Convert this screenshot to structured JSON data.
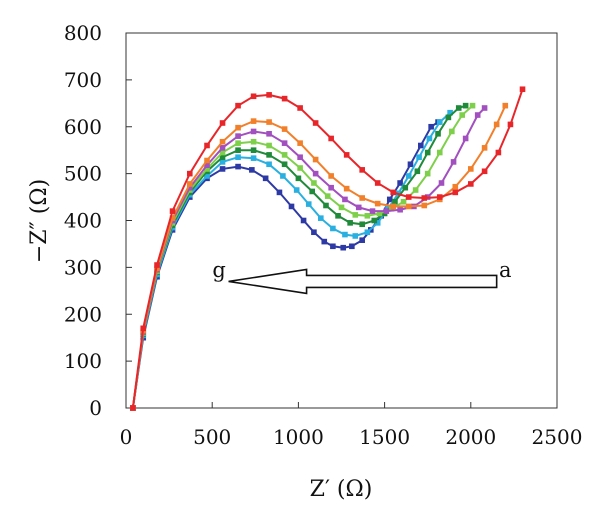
{
  "chart_data": {
    "type": "line",
    "xlabel": "Z′ (Ω)",
    "ylabel": "−Z″ (Ω)",
    "xlim": [
      0,
      2500
    ],
    "ylim": [
      0,
      800
    ],
    "x_ticks": [
      0,
      500,
      1000,
      1500,
      2000,
      2500
    ],
    "y_ticks": [
      0,
      100,
      200,
      300,
      400,
      500,
      600,
      700,
      800
    ],
    "grid": false,
    "legend": "none",
    "annotations": [
      {
        "text": "g",
        "x": 540,
        "y": 280
      },
      {
        "text": "a",
        "x": 2200,
        "y": 280
      }
    ],
    "arrow": {
      "from": [
        2150,
        270
      ],
      "to": [
        595,
        270
      ],
      "direction": "right-to-left"
    },
    "series": [
      {
        "color": "#2d3aa6",
        "marker": "square",
        "x": [
          40,
          100,
          180,
          270,
          370,
          470,
          560,
          650,
          730,
          810,
          890,
          960,
          1030,
          1090,
          1150,
          1200,
          1260,
          1310,
          1370,
          1420,
          1480,
          1530,
          1590,
          1650,
          1710,
          1770,
          1810
        ],
        "y": [
          0,
          150,
          280,
          380,
          450,
          490,
          510,
          515,
          508,
          490,
          460,
          430,
          400,
          375,
          355,
          345,
          342,
          345,
          358,
          380,
          410,
          445,
          480,
          520,
          560,
          600,
          610
        ]
      },
      {
        "color": "#29b0e0",
        "marker": "square",
        "x": [
          40,
          100,
          180,
          270,
          370,
          470,
          560,
          650,
          740,
          830,
          910,
          990,
          1060,
          1130,
          1200,
          1270,
          1330,
          1400,
          1460,
          1520,
          1580,
          1640,
          1700,
          1760,
          1820,
          1880
        ],
        "y": [
          0,
          155,
          285,
          385,
          455,
          495,
          525,
          535,
          533,
          520,
          495,
          465,
          435,
          405,
          383,
          370,
          367,
          375,
          395,
          425,
          458,
          495,
          535,
          575,
          610,
          630
        ]
      },
      {
        "color": "#1f8a3a",
        "marker": "square",
        "x": [
          40,
          100,
          180,
          270,
          370,
          470,
          560,
          650,
          740,
          830,
          920,
          1000,
          1080,
          1160,
          1230,
          1300,
          1370,
          1440,
          1500,
          1560,
          1620,
          1690,
          1750,
          1810,
          1870,
          1930,
          1970
        ],
        "y": [
          0,
          158,
          290,
          390,
          460,
          505,
          535,
          550,
          550,
          540,
          520,
          490,
          462,
          432,
          410,
          395,
          392,
          400,
          415,
          440,
          470,
          505,
          545,
          585,
          620,
          640,
          645
        ]
      },
      {
        "color": "#7ed04a",
        "marker": "square",
        "x": [
          40,
          100,
          180,
          270,
          370,
          470,
          560,
          650,
          740,
          830,
          920,
          1010,
          1090,
          1170,
          1250,
          1330,
          1400,
          1470,
          1540,
          1610,
          1680,
          1750,
          1820,
          1890,
          1950,
          2010
        ],
        "y": [
          0,
          160,
          292,
          395,
          465,
          510,
          545,
          565,
          568,
          560,
          540,
          512,
          480,
          452,
          428,
          412,
          410,
          415,
          425,
          440,
          465,
          500,
          545,
          590,
          625,
          645
        ]
      },
      {
        "color": "#a24fbf",
        "marker": "square",
        "x": [
          40,
          100,
          180,
          270,
          370,
          470,
          560,
          650,
          740,
          830,
          920,
          1010,
          1100,
          1190,
          1270,
          1350,
          1430,
          1510,
          1590,
          1670,
          1750,
          1830,
          1900,
          1970,
          2040,
          2080
        ],
        "y": [
          0,
          162,
          295,
          400,
          470,
          518,
          555,
          580,
          590,
          585,
          565,
          535,
          500,
          470,
          445,
          428,
          420,
          420,
          423,
          430,
          450,
          480,
          525,
          575,
          625,
          640
        ]
      },
      {
        "color": "#f27f2a",
        "marker": "square",
        "x": [
          40,
          100,
          180,
          270,
          370,
          470,
          560,
          650,
          740,
          830,
          920,
          1010,
          1100,
          1190,
          1280,
          1370,
          1460,
          1550,
          1640,
          1730,
          1820,
          1910,
          2000,
          2080,
          2150,
          2200
        ],
        "y": [
          0,
          165,
          298,
          405,
          478,
          528,
          568,
          598,
          612,
          610,
          595,
          565,
          530,
          495,
          468,
          448,
          436,
          430,
          430,
          432,
          445,
          472,
          510,
          555,
          605,
          645
        ]
      },
      {
        "color": "#e8262a",
        "marker": "square",
        "x": [
          40,
          100,
          180,
          270,
          370,
          470,
          560,
          650,
          740,
          830,
          920,
          1010,
          1100,
          1190,
          1280,
          1370,
          1460,
          1550,
          1640,
          1730,
          1820,
          1910,
          2000,
          2080,
          2160,
          2230,
          2300
        ],
        "y": [
          0,
          170,
          305,
          420,
          500,
          560,
          608,
          645,
          665,
          668,
          660,
          640,
          608,
          575,
          540,
          508,
          480,
          460,
          450,
          448,
          450,
          460,
          478,
          505,
          545,
          605,
          680
        ]
      }
    ]
  }
}
